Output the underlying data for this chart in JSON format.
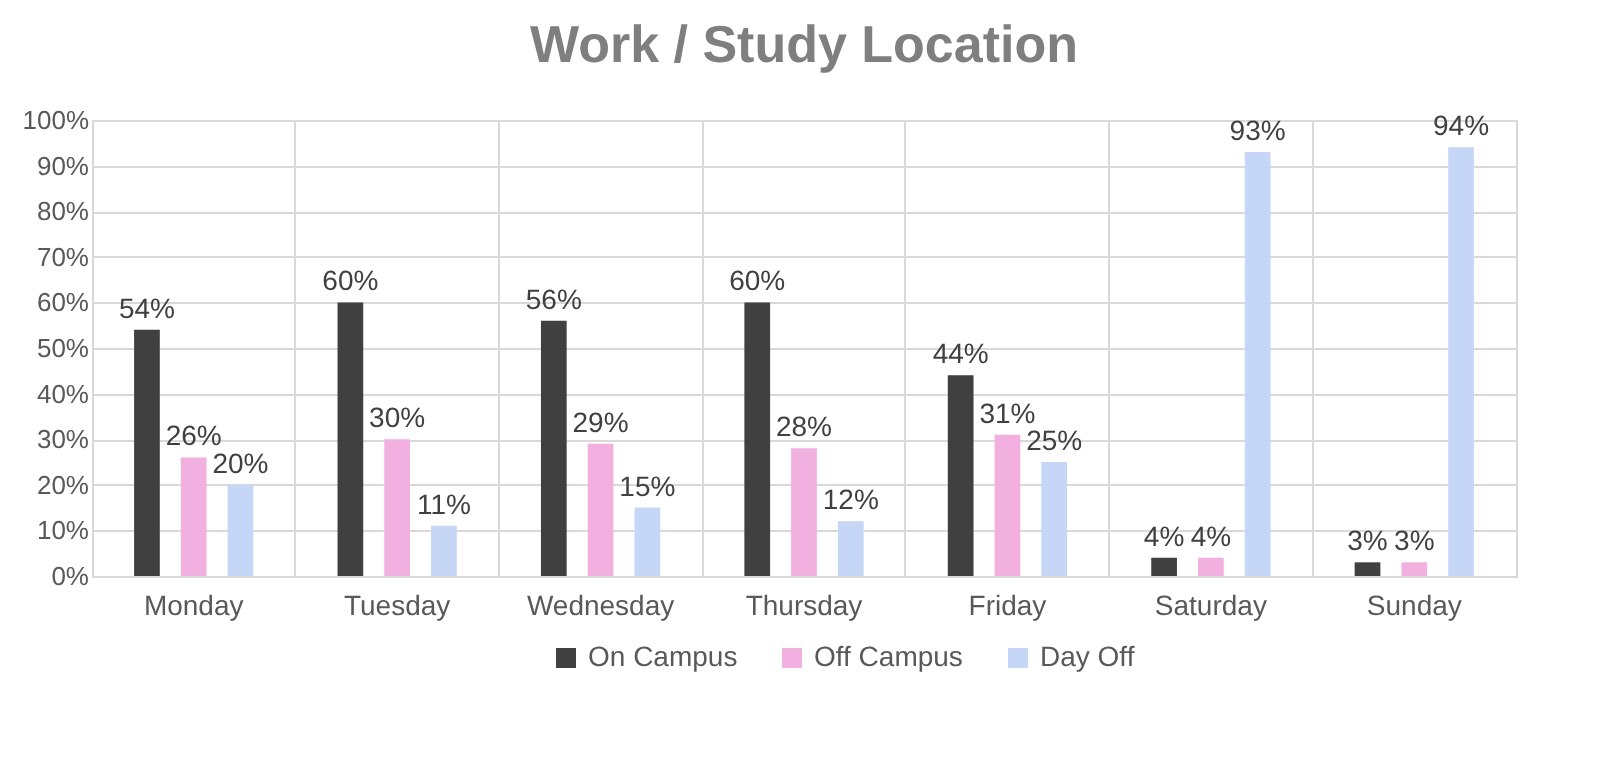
{
  "chart_data": {
    "type": "bar",
    "title": "Work / Study Location",
    "categories": [
      "Monday",
      "Tuesday",
      "Wednesday",
      "Thursday",
      "Friday",
      "Saturday",
      "Sunday"
    ],
    "series": [
      {
        "name": "On Campus",
        "color": "#404040",
        "values": [
          54,
          60,
          56,
          60,
          44,
          4,
          3
        ],
        "value_labels": [
          "54%",
          "60%",
          "56%",
          "60%",
          "44%",
          "4%",
          "3%"
        ]
      },
      {
        "name": "Off Campus",
        "color": "#f2b0e0",
        "values": [
          26,
          30,
          29,
          28,
          31,
          4,
          3
        ],
        "value_labels": [
          "26%",
          "30%",
          "29%",
          "28%",
          "31%",
          "4%",
          "3%"
        ]
      },
      {
        "name": "Day Off",
        "color": "#c5d6f7",
        "values": [
          20,
          11,
          15,
          12,
          25,
          93,
          94
        ],
        "value_labels": [
          "20%",
          "11%",
          "15%",
          "12%",
          "25%",
          "93%",
          "94%"
        ]
      }
    ],
    "ylim": [
      0,
      100
    ],
    "yticks": [
      {
        "value": 0,
        "label": "0%"
      },
      {
        "value": 10,
        "label": "10%"
      },
      {
        "value": 20,
        "label": "20%"
      },
      {
        "value": 30,
        "label": "30%"
      },
      {
        "value": 40,
        "label": "40%"
      },
      {
        "value": 50,
        "label": "50%"
      },
      {
        "value": 60,
        "label": "60%"
      },
      {
        "value": 70,
        "label": "70%"
      },
      {
        "value": 80,
        "label": "80%"
      },
      {
        "value": 90,
        "label": "90%"
      },
      {
        "value": 100,
        "label": "100%"
      }
    ],
    "grid": true,
    "legend": "bottom"
  }
}
